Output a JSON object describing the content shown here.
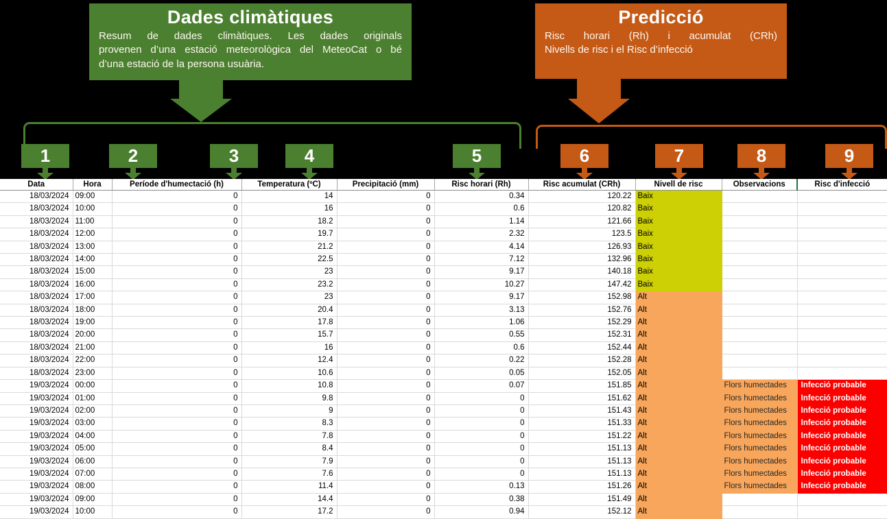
{
  "callouts": {
    "climate": {
      "title": "Dades climàtiques",
      "lines": [
        "Resum de dades climàtiques. Les dades originals",
        "provenen d’una estació meteorològica del MeteoCat o bé",
        "d’una estació de la persona usuària."
      ]
    },
    "prediction": {
      "title": "Predicció",
      "lines": [
        "Risc horari (Rh) i acumulat (CRh)",
        "Nivells de risc i el Risc d’infecció"
      ]
    }
  },
  "markers": [
    {
      "label": "1",
      "group": "climate"
    },
    {
      "label": "2",
      "group": "climate"
    },
    {
      "label": "3",
      "group": "climate"
    },
    {
      "label": "4",
      "group": "climate"
    },
    {
      "label": "5",
      "group": "climate"
    },
    {
      "label": "6",
      "group": "prediction"
    },
    {
      "label": "7",
      "group": "prediction"
    },
    {
      "label": "8",
      "group": "prediction"
    },
    {
      "label": "9",
      "group": "prediction"
    }
  ],
  "table": {
    "headers": [
      "Data",
      "Hora",
      "Període d'humectació (h)",
      "Temperatura (ºC)",
      "Precipitació (mm)",
      "Risc horari (Rh)",
      "Risc acumulat (CRh)",
      "Nivell de risc",
      "Observacions",
      "Risc d'infecció"
    ],
    "rows": [
      [
        "18/03/2024",
        "09:00",
        "0",
        "14",
        "0",
        "0.34",
        "120.22",
        "Baix",
        "",
        ""
      ],
      [
        "18/03/2024",
        "10:00",
        "0",
        "16",
        "0",
        "0.6",
        "120.82",
        "Baix",
        "",
        ""
      ],
      [
        "18/03/2024",
        "11:00",
        "0",
        "18.2",
        "0",
        "1.14",
        "121.66",
        "Baix",
        "",
        ""
      ],
      [
        "18/03/2024",
        "12:00",
        "0",
        "19.7",
        "0",
        "2.32",
        "123.5",
        "Baix",
        "",
        ""
      ],
      [
        "18/03/2024",
        "13:00",
        "0",
        "21.2",
        "0",
        "4.14",
        "126.93",
        "Baix",
        "",
        ""
      ],
      [
        "18/03/2024",
        "14:00",
        "0",
        "22.5",
        "0",
        "7.12",
        "132.96",
        "Baix",
        "",
        ""
      ],
      [
        "18/03/2024",
        "15:00",
        "0",
        "23",
        "0",
        "9.17",
        "140.18",
        "Baix",
        "",
        ""
      ],
      [
        "18/03/2024",
        "16:00",
        "0",
        "23.2",
        "0",
        "10.27",
        "147.42",
        "Baix",
        "",
        ""
      ],
      [
        "18/03/2024",
        "17:00",
        "0",
        "23",
        "0",
        "9.17",
        "152.98",
        "Alt",
        "",
        ""
      ],
      [
        "18/03/2024",
        "18:00",
        "0",
        "20.4",
        "0",
        "3.13",
        "152.76",
        "Alt",
        "",
        ""
      ],
      [
        "18/03/2024",
        "19:00",
        "0",
        "17.8",
        "0",
        "1.06",
        "152.29",
        "Alt",
        "",
        ""
      ],
      [
        "18/03/2024",
        "20:00",
        "0",
        "15.7",
        "0",
        "0.55",
        "152.31",
        "Alt",
        "",
        ""
      ],
      [
        "18/03/2024",
        "21:00",
        "0",
        "16",
        "0",
        "0.6",
        "152.44",
        "Alt",
        "",
        ""
      ],
      [
        "18/03/2024",
        "22:00",
        "0",
        "12.4",
        "0",
        "0.22",
        "152.28",
        "Alt",
        "",
        ""
      ],
      [
        "18/03/2024",
        "23:00",
        "0",
        "10.6",
        "0",
        "0.05",
        "152.05",
        "Alt",
        "",
        ""
      ],
      [
        "19/03/2024",
        "00:00",
        "0",
        "10.8",
        "0",
        "0.07",
        "151.85",
        "Alt",
        "Flors humectades",
        "Infecció probable"
      ],
      [
        "19/03/2024",
        "01:00",
        "0",
        "9.8",
        "0",
        "0",
        "151.62",
        "Alt",
        "Flors humectades",
        "Infecció probable"
      ],
      [
        "19/03/2024",
        "02:00",
        "0",
        "9",
        "0",
        "0",
        "151.43",
        "Alt",
        "Flors humectades",
        "Infecció probable"
      ],
      [
        "19/03/2024",
        "03:00",
        "0",
        "8.3",
        "0",
        "0",
        "151.33",
        "Alt",
        "Flors humectades",
        "Infecció probable"
      ],
      [
        "19/03/2024",
        "04:00",
        "0",
        "7.8",
        "0",
        "0",
        "151.22",
        "Alt",
        "Flors humectades",
        "Infecció probable"
      ],
      [
        "19/03/2024",
        "05:00",
        "0",
        "8.4",
        "0",
        "0",
        "151.13",
        "Alt",
        "Flors humectades",
        "Infecció probable"
      ],
      [
        "19/03/2024",
        "06:00",
        "0",
        "7.9",
        "0",
        "0",
        "151.13",
        "Alt",
        "Flors humectades",
        "Infecció probable"
      ],
      [
        "19/03/2024",
        "07:00",
        "0",
        "7.6",
        "0",
        "0",
        "151.13",
        "Alt",
        "Flors humectades",
        "Infecció probable"
      ],
      [
        "19/03/2024",
        "08:00",
        "0",
        "11.4",
        "0",
        "0.13",
        "151.26",
        "Alt",
        "Flors humectades",
        "Infecció probable"
      ],
      [
        "19/03/2024",
        "09:00",
        "0",
        "14.4",
        "0",
        "0.38",
        "151.49",
        "Alt",
        "",
        ""
      ],
      [
        "19/03/2024",
        "10:00",
        "0",
        "17.2",
        "0",
        "0.94",
        "152.12",
        "Alt",
        "",
        ""
      ]
    ]
  },
  "colors": {
    "climate_green": "#4b8030",
    "prediction_orange": "#c45a16",
    "risk_low_fill": "#ccd005",
    "risk_high_fill": "#f7a65b",
    "infection_fill": "#fc0000",
    "infection_text": "#ffffff",
    "annotation_backdrop": "#000000"
  }
}
